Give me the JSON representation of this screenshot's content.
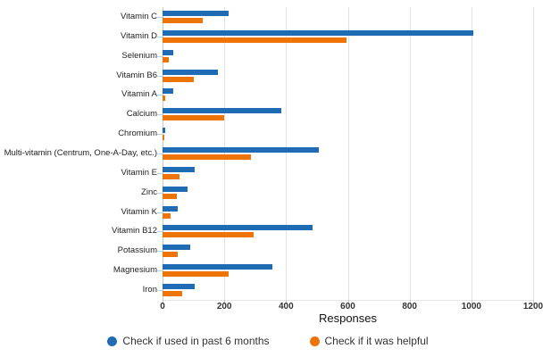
{
  "chart_data": {
    "type": "bar",
    "orientation": "horizontal",
    "title": "",
    "xlabel": "Responses",
    "ylabel": "",
    "xlim": [
      0,
      1200
    ],
    "x_ticks": [
      0,
      200,
      400,
      600,
      800,
      1000,
      1200
    ],
    "grid": true,
    "legend_position": "bottom",
    "categories": [
      "Vitamin C",
      "Vitamin D",
      "Selenium",
      "Vitamin B6",
      "Vitamin A",
      "Calcium",
      "Chromium",
      "Multi-vitamin (Centrum, One-A-Day, etc.)",
      "Vitamin E",
      "Zinc",
      "Vitamin K",
      "Vitamin B12",
      "Potassium",
      "Magnesium",
      "Iron"
    ],
    "series": [
      {
        "name": "Check if used in past 6 months",
        "color": "#1f6bb4",
        "values": [
          215,
          1005,
          35,
          180,
          35,
          385,
          10,
          505,
          105,
          80,
          50,
          485,
          90,
          355,
          105
        ]
      },
      {
        "name": "Check if it was helpful",
        "color": "#ee7408",
        "values": [
          130,
          595,
          20,
          100,
          10,
          200,
          5,
          285,
          55,
          45,
          25,
          295,
          50,
          215,
          65
        ]
      }
    ],
    "colors": {
      "grid": "#e2e2e2",
      "y_tick": "#bcd0e8",
      "text": "#333333"
    }
  }
}
